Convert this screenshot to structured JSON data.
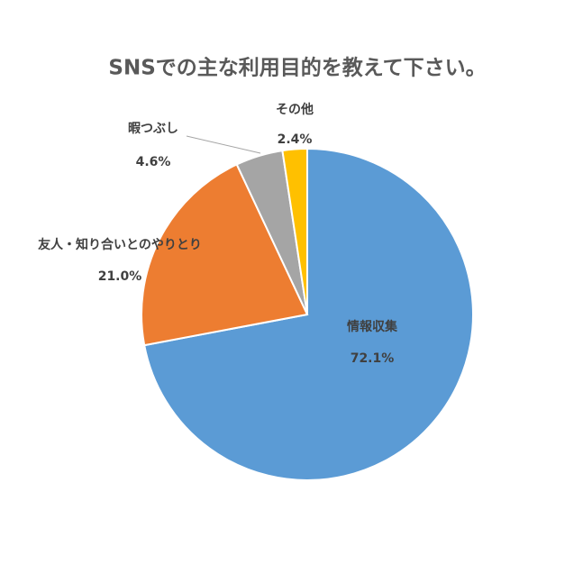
{
  "chart_data": {
    "type": "pie",
    "title": "SNSでの主な利用目的を教えて下さい。",
    "categories": [
      "情報収集",
      "友人・知り合いとのやりとり",
      "暇つぶし",
      "その他"
    ],
    "values": [
      72.1,
      21.0,
      4.6,
      2.4
    ],
    "value_labels": [
      "72.1%",
      "21.0%",
      "4.6%",
      "2.4%"
    ],
    "colors": [
      "#5b9bd5",
      "#ed7d31",
      "#a5a5a5",
      "#ffc000"
    ]
  }
}
